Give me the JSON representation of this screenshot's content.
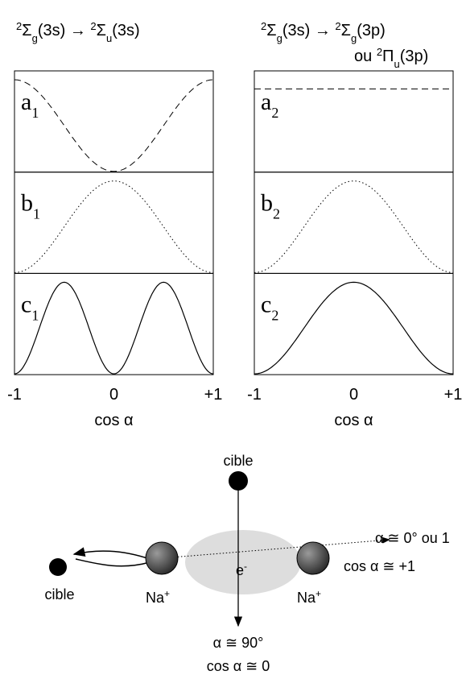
{
  "panels": [
    {
      "title_parts": [
        "2",
        "Σ",
        "g",
        "(3s) → ",
        "2",
        "Σ",
        "u",
        "(3s)"
      ],
      "labels": [
        [
          "a",
          "1"
        ],
        [
          "b",
          "1"
        ],
        [
          "c",
          "1"
        ]
      ],
      "ticks": [
        "-1",
        "0",
        "+1"
      ],
      "axis_label": "cos α"
    },
    {
      "title_parts": [
        "2",
        "Σ",
        "g",
        "(3s) → ",
        "2",
        "Σ",
        "g",
        "(3p)"
      ],
      "title_line2_parts": [
        "ou ",
        "2",
        "Π",
        "u",
        "(3p)"
      ],
      "labels": [
        [
          "a",
          "2"
        ],
        [
          "b",
          "2"
        ],
        [
          "c",
          "2"
        ]
      ],
      "ticks": [
        "-1",
        "0",
        "+1"
      ],
      "axis_label": "cos α"
    }
  ],
  "diagram": {
    "target_top": "cible",
    "target_left": "cible",
    "na_left": [
      "Na",
      "+"
    ],
    "na_right": [
      "Na",
      "+"
    ],
    "electron": [
      "e",
      "-"
    ],
    "angle_0": "α ≅ 0° ou 1",
    "cos_0": "cos α ≅ +1",
    "angle_90": "α ≅ 90°",
    "cos_90": "cos α ≅ 0"
  }
}
